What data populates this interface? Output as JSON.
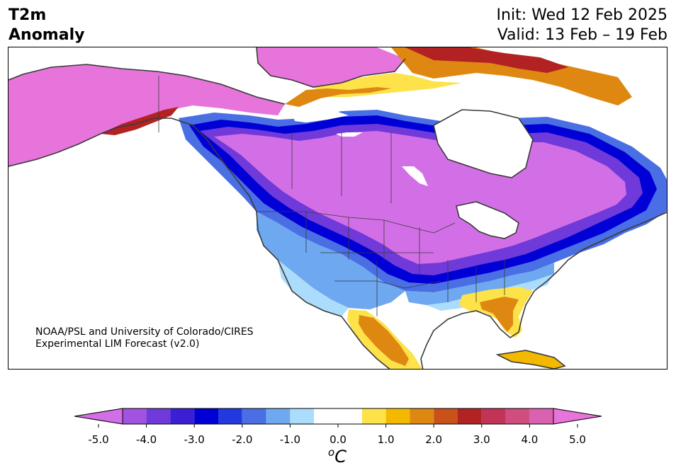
{
  "header": {
    "variable_line1": "T2m",
    "variable_line2": "Anomaly",
    "init": "Init: Wed 12 Feb 2025",
    "valid": "Valid: 13 Feb – 19 Feb"
  },
  "credit": {
    "line1": "NOAA/PSL and University of Colorado/CIRES",
    "line2": "Experimental LIM Forecast (v2.0)"
  },
  "colorbar": {
    "unit_symbol": "o",
    "unit_letter": "C",
    "ticks": [
      {
        "label": "-5.0",
        "value": -5.0
      },
      {
        "label": "-4.0",
        "value": -4.0
      },
      {
        "label": "-3.0",
        "value": -3.0
      },
      {
        "label": "-2.0",
        "value": -2.0
      },
      {
        "label": "-1.0",
        "value": -1.0
      },
      {
        "label": "0.0",
        "value": 0.0
      },
      {
        "label": "1.0",
        "value": 1.0
      },
      {
        "label": "2.0",
        "value": 2.0
      },
      {
        "label": "3.0",
        "value": 3.0
      },
      {
        "label": "4.0",
        "value": 4.0
      },
      {
        "label": "5.0",
        "value": 5.0
      }
    ],
    "range": [
      -5.0,
      5.0
    ],
    "bins": [
      {
        "from": -5.0,
        "to": -4.5,
        "color": "#d36fe6"
      },
      {
        "from": -4.5,
        "to": -4.0,
        "color": "#a252e0"
      },
      {
        "from": -4.0,
        "to": -3.5,
        "color": "#6f3ad9"
      },
      {
        "from": -3.5,
        "to": -3.0,
        "color": "#3a1fd4"
      },
      {
        "from": -3.0,
        "to": -2.5,
        "color": "#0000d6"
      },
      {
        "from": -2.5,
        "to": -2.0,
        "color": "#2239e0"
      },
      {
        "from": -2.0,
        "to": -1.5,
        "color": "#4a6ee4"
      },
      {
        "from": -1.5,
        "to": -1.0,
        "color": "#6ea8f0"
      },
      {
        "from": -1.0,
        "to": -0.5,
        "color": "#acdcfb"
      },
      {
        "from": -0.5,
        "to": 0.5,
        "color": "#ffffff"
      },
      {
        "from": 0.5,
        "to": 1.0,
        "color": "#fde24a"
      },
      {
        "from": 1.0,
        "to": 1.5,
        "color": "#f3b800"
      },
      {
        "from": 1.5,
        "to": 2.0,
        "color": "#de8812"
      },
      {
        "from": 2.0,
        "to": 2.5,
        "color": "#c8521a"
      },
      {
        "from": 2.5,
        "to": 3.0,
        "color": "#b32222"
      },
      {
        "from": 3.0,
        "to": 3.5,
        "color": "#c23455"
      },
      {
        "from": 3.5,
        "to": 4.0,
        "color": "#cf4d7f"
      },
      {
        "from": 4.0,
        "to": 4.5,
        "color": "#d962b0"
      },
      {
        "from": 4.5,
        "to": 5.0,
        "color": "#e674da"
      }
    ],
    "extend_low_color": "#d36fe6",
    "extend_high_color": "#e674da"
  },
  "map": {
    "region": "North America",
    "field_colors": {
      "very_warm": "#e674da",
      "cold_core": "#d36fe6",
      "cold_ring_1": "#a252e0",
      "cold_ring_2": "#3a1fd4",
      "cold_ring_3": "#0000d6",
      "cool_1": "#4a6ee4",
      "cool_2": "#6ea8f0",
      "cool_3": "#acdcfb",
      "warm_1": "#fde24a",
      "warm_2": "#f3b800",
      "warm_3": "#de8812",
      "warm_4": "#b32222",
      "coast": "#3a3a3a",
      "ocean": "#ffffff"
    }
  }
}
